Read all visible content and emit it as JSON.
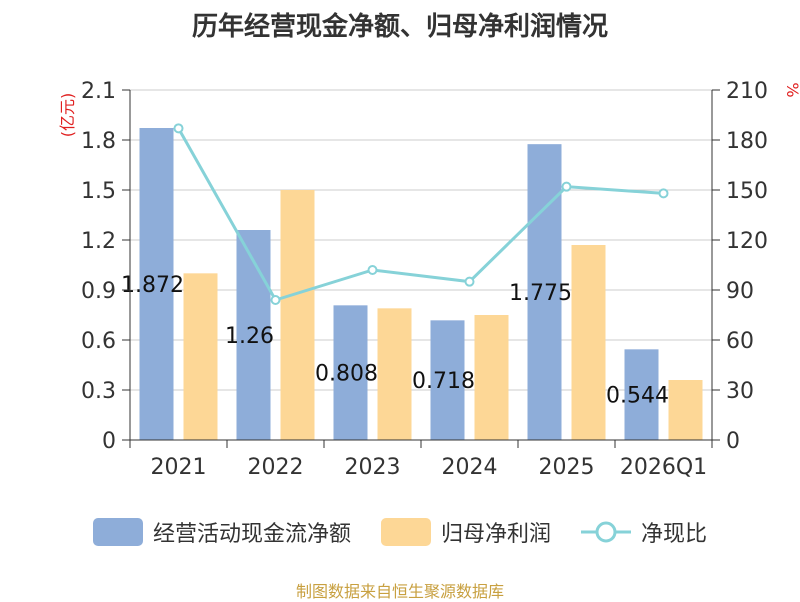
{
  "chart_data": {
    "type": "bar",
    "title": "历年经营现金净额、归母净利润情况",
    "categories": [
      "2021",
      "2022",
      "2023",
      "2024",
      "2025",
      "2026Q1"
    ],
    "series": [
      {
        "name": "经营活动现金流净额",
        "type": "bar",
        "axis": "left",
        "color": "#8eadd9",
        "values": [
          1.872,
          1.26,
          0.808,
          0.718,
          1.775,
          0.544
        ],
        "labels": [
          "1.872",
          "1.26",
          "0.808",
          "0.718",
          "1.775",
          "0.544"
        ]
      },
      {
        "name": "归母净利润",
        "type": "bar",
        "axis": "left",
        "color": "#fdd796",
        "values": [
          1.0,
          1.5,
          0.79,
          0.75,
          1.17,
          0.36
        ]
      },
      {
        "name": "净现比",
        "type": "line",
        "axis": "right",
        "color": "#86d2d8",
        "values": [
          187,
          84,
          102,
          95,
          152,
          148
        ]
      }
    ],
    "y_left": {
      "label": "(亿元)",
      "ylim": [
        0,
        2.1
      ],
      "ticks": [
        "0",
        "0.3",
        "0.6",
        "0.9",
        "1.2",
        "1.5",
        "1.8",
        "2.1"
      ]
    },
    "y_right": {
      "label": "%",
      "ylim": [
        0,
        210
      ],
      "ticks": [
        "0",
        "30",
        "60",
        "90",
        "120",
        "150",
        "180",
        "210"
      ]
    },
    "grid": true,
    "legend_position": "bottom"
  },
  "source_text": "制图数据来自恒生聚源数据库"
}
